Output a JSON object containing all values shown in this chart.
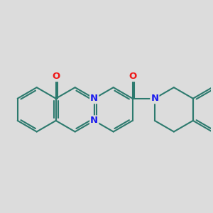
{
  "bg_color": "#dcdcdc",
  "bond_color": "#2d7a6e",
  "bond_width": 1.5,
  "atom_colors": {
    "N": "#1a1aee",
    "O": "#ee1a1a"
  },
  "font_size": 9.5,
  "figsize": [
    3.0,
    3.0
  ],
  "dpi": 100
}
